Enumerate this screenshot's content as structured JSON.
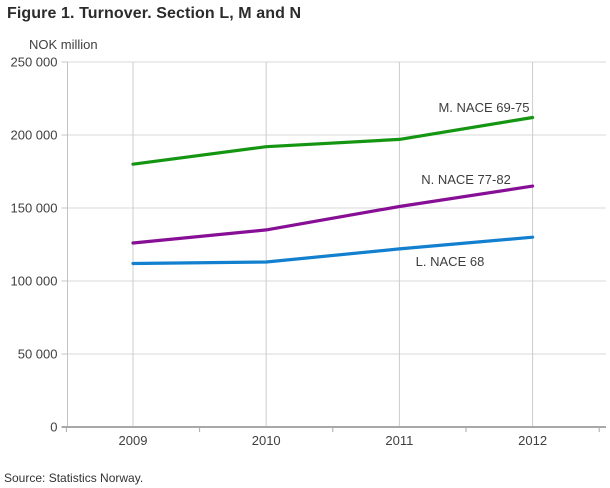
{
  "title": "Figure 1. Turnover. Section L, M and N",
  "y_axis_unit": "NOK million",
  "source": "Source: Statistics Norway.",
  "chart_data": {
    "type": "line",
    "title": "Figure 1. Turnover. Section L, M and N",
    "ylabel": "NOK million",
    "xlabel": "",
    "categories": [
      "2009",
      "2010",
      "2011",
      "2012"
    ],
    "series": [
      {
        "name": "M. NACE 69-75",
        "values": [
          180000,
          192000,
          197000,
          212000
        ],
        "color": "#149612"
      },
      {
        "name": "N. NACE 77-82",
        "values": [
          126000,
          135000,
          151000,
          165000
        ],
        "color": "#870f96"
      },
      {
        "name": "L. NACE 68",
        "values": [
          112000,
          113000,
          122000,
          130000
        ],
        "color": "#1380cf"
      }
    ],
    "ylim": [
      0,
      250000
    ],
    "y_ticks": [
      0,
      50000,
      100000,
      150000,
      200000,
      250000
    ],
    "y_tick_labels": [
      "0",
      "50 000",
      "100 000",
      "150 000",
      "200 000",
      "250 000"
    ],
    "grid": true,
    "legend_position": "inline-labels",
    "colors": {
      "grid_horizontal": "#d9d9d9",
      "grid_vertical": "#cccccc",
      "axis": "#c4c4c4",
      "axis_bottom": "#a8a8a8",
      "tick_label": "#404040",
      "series_label": "#3d3d3d"
    },
    "source": "Source: Statistics Norway."
  }
}
